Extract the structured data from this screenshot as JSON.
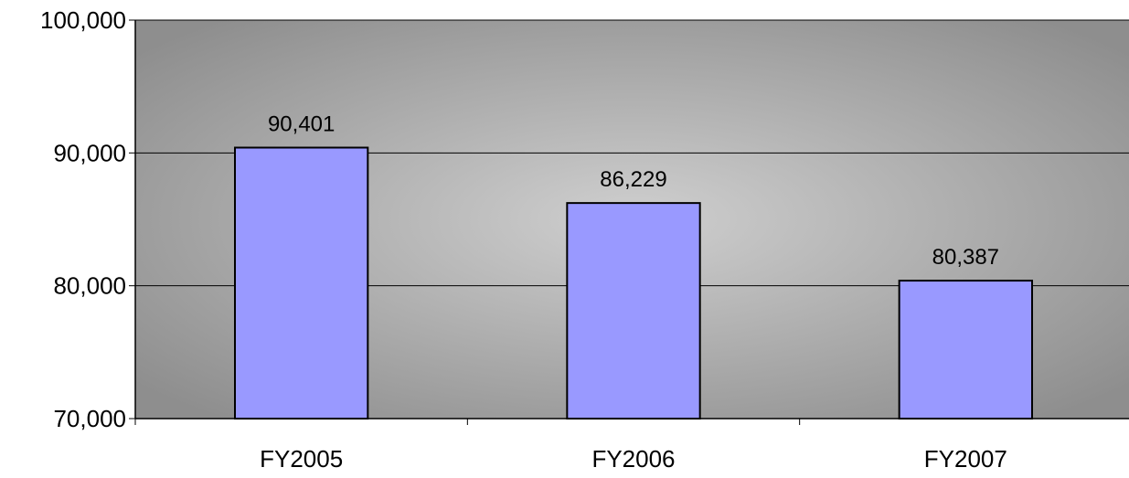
{
  "chart_data": {
    "type": "bar",
    "title": "",
    "xlabel": "",
    "ylabel": "",
    "categories": [
      "FY2005",
      "FY2006",
      "FY2007"
    ],
    "values": [
      90401,
      86229,
      80387
    ],
    "data_labels": [
      "90,401",
      "86,229",
      "80,387"
    ],
    "ylim": [
      70000,
      100000
    ],
    "yticks": [
      70000,
      80000,
      90000,
      100000
    ],
    "ytick_labels": [
      "70,000",
      "80,000",
      "90,000",
      "100,000"
    ],
    "grid": true,
    "legend": "none",
    "colors": {
      "bar_fill": "#9999ff",
      "bar_stroke": "#000000",
      "plot_center": "#cfcfcf",
      "plot_edge": "#8e8e8e",
      "gridline": "#000000"
    }
  }
}
